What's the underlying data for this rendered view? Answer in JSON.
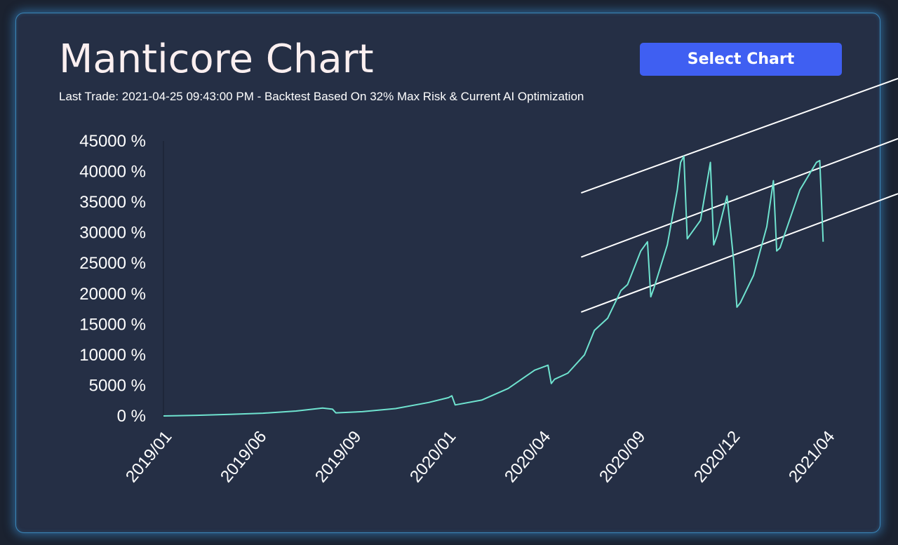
{
  "header": {
    "title": "Manticore Chart",
    "subtitle": "Last Trade: 2021-04-25 09:43:00 PM - Backtest Based On 32% Max Risk & Current AI Optimization",
    "select_button_label": "Select Chart"
  },
  "colors": {
    "background": "#1b2230",
    "panel": "#252f45",
    "panel_glow": "#3a86b8",
    "button": "#3f5ff2",
    "line": "#6fe3cf",
    "channel": "#ffffff",
    "text": "#ffffff"
  },
  "chart_data": {
    "type": "line",
    "title": "",
    "xlabel": "",
    "ylabel": "",
    "ylim": [
      0,
      45000
    ],
    "y_ticks": [
      "0 %",
      "5000 %",
      "10000 %",
      "15000 %",
      "20000 %",
      "25000 %",
      "30000 %",
      "35000 %",
      "40000 %",
      "45000 %"
    ],
    "x_tick_labels": [
      "2019/01",
      "2019/06",
      "2019/09",
      "2020/01",
      "2020/04",
      "2020/09",
      "2020/12",
      "2021/04"
    ],
    "grid": false,
    "legend": "none",
    "series": [
      {
        "x": [
          0,
          0.05,
          0.1,
          0.15,
          0.2,
          0.24,
          0.255,
          0.26,
          0.3,
          0.35,
          0.4,
          0.43,
          0.435,
          0.44,
          0.48,
          0.52,
          0.56,
          0.58,
          0.585,
          0.59,
          0.61,
          0.635,
          0.65,
          0.67,
          0.69,
          0.7,
          0.72,
          0.73,
          0.735,
          0.74,
          0.76,
          0.775,
          0.78,
          0.785,
          0.79,
          0.81,
          0.825,
          0.83,
          0.835,
          0.85,
          0.86,
          0.865,
          0.87,
          0.89,
          0.91,
          0.92,
          0.925,
          0.93,
          0.96,
          0.985,
          0.99,
          0.995
        ],
        "values": [
          0,
          100,
          250,
          450,
          800,
          1300,
          1100,
          500,
          700,
          1200,
          2200,
          3000,
          3300,
          1800,
          2600,
          4500,
          7500,
          8300,
          5300,
          6000,
          7000,
          10000,
          14000,
          16000,
          20500,
          21500,
          27000,
          28500,
          19500,
          21000,
          28000,
          37000,
          41500,
          42500,
          29000,
          32000,
          41500,
          28000,
          29500,
          36000,
          25500,
          17800,
          18500,
          23000,
          31000,
          38500,
          27000,
          27500,
          37000,
          41500,
          41800,
          28500
        ]
      }
    ],
    "channel_lines": [
      {
        "x": [
          0.63,
          1.0
        ],
        "values": [
          36500,
          51000
        ]
      },
      {
        "x": [
          0.63,
          1.0
        ],
        "values": [
          26000,
          41000
        ]
      },
      {
        "x": [
          0.63,
          1.0
        ],
        "values": [
          17000,
          32000
        ]
      }
    ]
  }
}
